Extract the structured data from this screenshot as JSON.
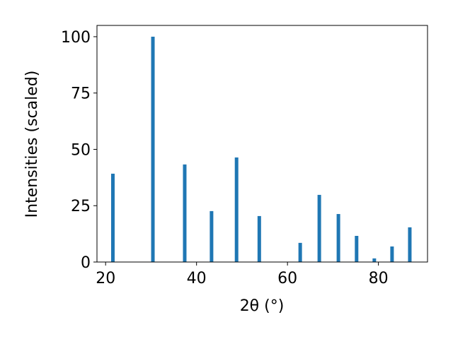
{
  "chart_data": {
    "type": "bar",
    "xlabel": "2θ (°)",
    "ylabel": "Intensities (scaled)",
    "x": [
      21.6,
      30.4,
      37.4,
      43.3,
      48.8,
      53.8,
      62.8,
      67.0,
      71.2,
      75.2,
      79.1,
      83.0,
      86.9
    ],
    "values": [
      39.2,
      100,
      43.3,
      22.6,
      46.4,
      20.4,
      8.5,
      29.8,
      21.3,
      11.6,
      1.6,
      6.9,
      15.4
    ],
    "color": "#1f77b4",
    "xlim": [
      18.1,
      90.8
    ],
    "xticks": [
      20,
      40,
      60,
      80
    ],
    "ylim": [
      0,
      105
    ],
    "yticks": [
      0,
      25,
      50,
      75,
      100
    ]
  }
}
